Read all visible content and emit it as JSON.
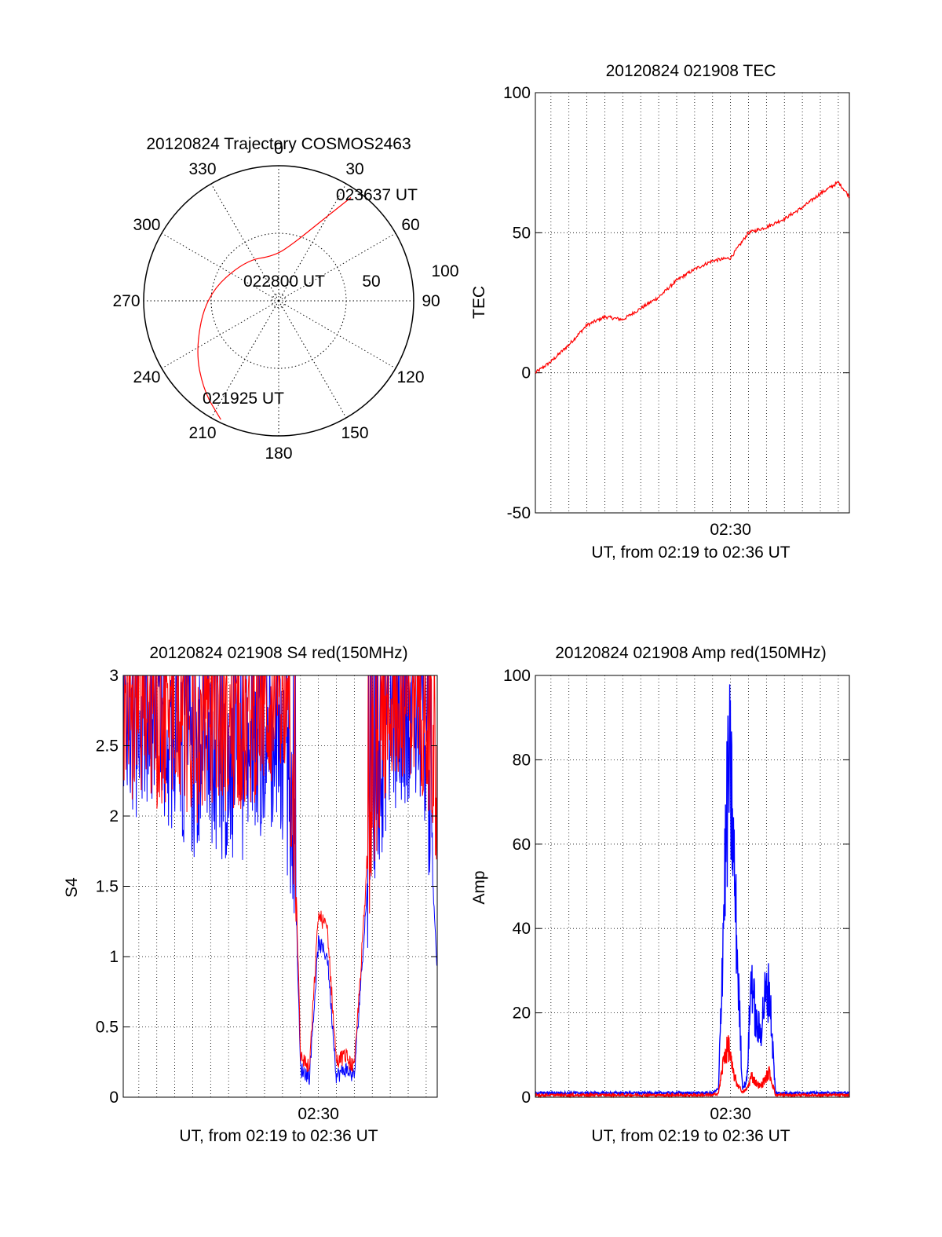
{
  "chart_data": [
    {
      "type": "polar-trajectory",
      "title": "20120824 Trajectory COSMOS2463",
      "azimuth_labels": [
        "0",
        "30",
        "60",
        "90",
        "120",
        "150",
        "180",
        "210",
        "240",
        "270",
        "300",
        "330"
      ],
      "radial_labels": [
        "50",
        "100"
      ],
      "trajectory": {
        "color": "#ff0000",
        "points": [
          {
            "az": 206,
            "el": 2
          },
          {
            "az": 220,
            "el": 12
          },
          {
            "az": 240,
            "el": 26
          },
          {
            "az": 275,
            "el": 42
          },
          {
            "az": 320,
            "el": 55
          },
          {
            "az": 355,
            "el": 60
          },
          {
            "az": 15,
            "el": 50
          },
          {
            "az": 28,
            "el": 30
          },
          {
            "az": 35,
            "el": 6
          }
        ]
      },
      "annotations": [
        {
          "text": "023637 UT"
        },
        {
          "text": "022800 UT"
        },
        {
          "text": "021925 UT"
        }
      ]
    },
    {
      "type": "line",
      "title": "20120824 021908 TEC",
      "xlabel": "UT, from 02:19 to 02:36 UT",
      "ylabel": "TEC",
      "xlim": [
        "02:19:08",
        "02:36:37"
      ],
      "ylim": [
        -50,
        100
      ],
      "yticks": [
        "-50",
        "0",
        "50",
        "100"
      ],
      "xticks": [
        {
          "label": "02:30",
          "value": "02:30:00"
        }
      ],
      "grid": true,
      "series": [
        {
          "color": "#ff0000",
          "x": [
            "02:19:08",
            "02:20:00",
            "02:21:00",
            "02:22:00",
            "02:23:00",
            "02:24:00",
            "02:25:00",
            "02:26:00",
            "02:27:00",
            "02:28:00",
            "02:29:00",
            "02:30:00",
            "02:31:00",
            "02:32:00",
            "02:33:00",
            "02:34:00",
            "02:35:00",
            "02:36:00",
            "02:36:37"
          ],
          "y": [
            0,
            4,
            10,
            17,
            20,
            19,
            23,
            27,
            33,
            37,
            40,
            41,
            50,
            52,
            55,
            59,
            64,
            68,
            63
          ]
        }
      ]
    },
    {
      "type": "line",
      "title": "20120824 021908 S4 red(150MHz)",
      "xlabel": "UT, from 02:19 to 02:36 UT",
      "ylabel": "S4",
      "xlim": [
        "02:19:08",
        "02:36:37"
      ],
      "ylim": [
        0,
        3
      ],
      "yticks": [
        "0",
        "0.5",
        "1",
        "1.5",
        "2",
        "2.5",
        "3"
      ],
      "xticks": [
        {
          "label": "02:30",
          "value": "02:30:00"
        }
      ],
      "grid": true,
      "series": [
        {
          "color": "#0000ff",
          "x": [
            "02:19:08",
            "02:20:00",
            "02:21:00",
            "02:22:00",
            "02:23:00",
            "02:24:00",
            "02:25:00",
            "02:26:00",
            "02:27:00",
            "02:28:00",
            "02:28:40",
            "02:29:00",
            "02:29:30",
            "02:30:00",
            "02:30:30",
            "02:31:00",
            "02:31:30",
            "02:32:00",
            "02:33:00",
            "02:34:00",
            "02:35:00",
            "02:36:00",
            "02:36:37"
          ],
          "y": [
            2.4,
            2.6,
            2.5,
            2.5,
            2.3,
            2.4,
            2.2,
            2.3,
            2.5,
            2.4,
            1.8,
            0.2,
            0.15,
            1.1,
            1.0,
            0.15,
            0.2,
            0.15,
            2.0,
            2.6,
            2.7,
            2.5,
            0.9
          ]
        },
        {
          "color": "#ff0000",
          "x": [
            "02:19:08",
            "02:20:00",
            "02:21:00",
            "02:22:00",
            "02:23:00",
            "02:24:00",
            "02:25:00",
            "02:26:00",
            "02:27:00",
            "02:28:00",
            "02:28:40",
            "02:29:00",
            "02:29:30",
            "02:30:00",
            "02:30:30",
            "02:31:00",
            "02:31:30",
            "02:32:00",
            "02:33:00",
            "02:34:00",
            "02:35:00",
            "02:36:00",
            "02:36:37"
          ],
          "y": [
            2.6,
            2.7,
            2.6,
            2.8,
            2.5,
            2.7,
            2.6,
            2.6,
            2.8,
            2.7,
            2.0,
            0.3,
            0.2,
            1.3,
            1.2,
            0.25,
            0.3,
            0.2,
            2.2,
            2.8,
            2.9,
            2.7,
            2.0
          ]
        }
      ]
    },
    {
      "type": "line",
      "title": "20120824 021908 Amp red(150MHz)",
      "xlabel": "UT, from 02:19 to 02:36 UT",
      "ylabel": "Amp",
      "xlim": [
        "02:19:08",
        "02:36:37"
      ],
      "ylim": [
        0,
        100
      ],
      "yticks": [
        "0",
        "20",
        "40",
        "60",
        "80",
        "100"
      ],
      "xticks": [
        {
          "label": "02:30",
          "value": "02:30:00"
        }
      ],
      "grid": true,
      "series": [
        {
          "color": "#0000ff",
          "x": [
            "02:19:08",
            "02:22:00",
            "02:25:00",
            "02:28:00",
            "02:29:00",
            "02:29:20",
            "02:29:40",
            "02:29:55",
            "02:30:05",
            "02:30:20",
            "02:30:40",
            "02:30:55",
            "02:31:10",
            "02:31:25",
            "02:31:40",
            "02:31:55",
            "02:32:10",
            "02:32:30",
            "02:33:00",
            "02:35:00",
            "02:36:37"
          ],
          "y": [
            1,
            1,
            1,
            1,
            1,
            2,
            60,
            93,
            80,
            45,
            2,
            5,
            35,
            20,
            18,
            28,
            30,
            1,
            1,
            1,
            1
          ]
        },
        {
          "color": "#ff0000",
          "x": [
            "02:19:08",
            "02:22:00",
            "02:25:00",
            "02:28:00",
            "02:29:00",
            "02:29:20",
            "02:29:40",
            "02:29:55",
            "02:30:05",
            "02:30:20",
            "02:30:40",
            "02:30:55",
            "02:31:10",
            "02:31:25",
            "02:31:40",
            "02:31:55",
            "02:32:10",
            "02:32:30",
            "02:33:00",
            "02:35:00",
            "02:36:37"
          ],
          "y": [
            0.5,
            0.5,
            0.5,
            0.5,
            0.5,
            1,
            12,
            14,
            8,
            4,
            1,
            2,
            6,
            4,
            3,
            5,
            7,
            0.5,
            0.5,
            0.5,
            0.5
          ]
        }
      ]
    }
  ]
}
